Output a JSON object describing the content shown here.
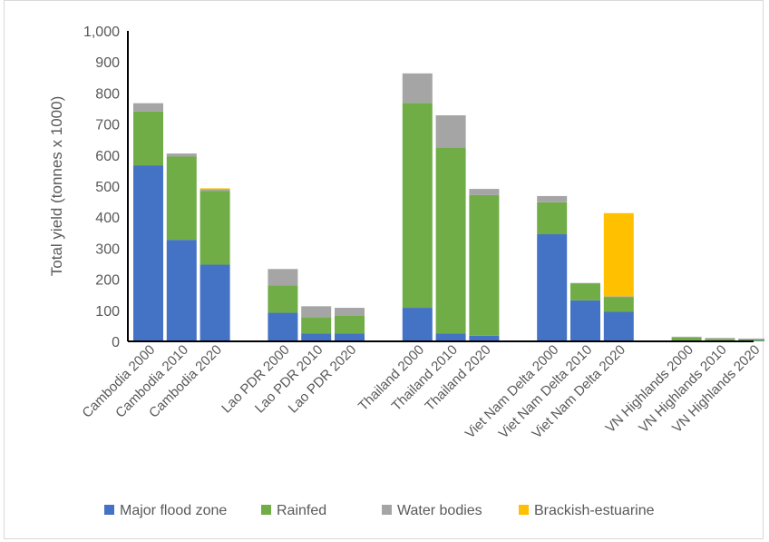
{
  "chart_data": {
    "type": "bar",
    "stacked": true,
    "title": "",
    "xlabel": "",
    "ylabel": "Total yield (tonnes x 1000)",
    "ylim": [
      0,
      1000
    ],
    "yticks": [
      0,
      100,
      200,
      300,
      400,
      500,
      600,
      700,
      800,
      900,
      1000
    ],
    "ytick_labels": [
      "0",
      "100",
      "200",
      "300",
      "400",
      "500",
      "600",
      "700",
      "800",
      "900",
      "1,000"
    ],
    "grid": false,
    "legend_position": "bottom",
    "groups": [
      [
        "Cambodia 2000",
        "Cambodia 2010",
        "Cambodia 2020"
      ],
      [
        "Lao PDR 2000",
        "Lao PDR 2010",
        "Lao PDR 2020"
      ],
      [
        "Thailand 2000",
        "Thailand 2010",
        "Thailand 2020"
      ],
      [
        "Viet Nam Delta 2000",
        "Viet Nam Delta 2010",
        "Viet Nam Delta 2020"
      ],
      [
        "VN Highlands 2000",
        "VN Highlands 2010",
        "VN Highlands 2020"
      ]
    ],
    "categories": [
      "Cambodia 2000",
      "Cambodia 2010",
      "Cambodia 2020",
      "Lao PDR 2000",
      "Lao PDR 2010",
      "Lao PDR 2020",
      "Thailand 2000",
      "Thailand 2010",
      "Thailand 2020",
      "Viet Nam Delta 2000",
      "Viet Nam Delta 2010",
      "Viet Nam Delta 2020",
      "VN Highlands 2000",
      "VN Highlands 2010",
      "VN Highlands 2020"
    ],
    "series": [
      {
        "name": "Major flood zone",
        "color": "#4472c4",
        "values": [
          567,
          327,
          247,
          92,
          25,
          25,
          108,
          25,
          18,
          345,
          132,
          95,
          2,
          2,
          2
        ]
      },
      {
        "name": "Rainfed",
        "color": "#70ad47",
        "values": [
          173,
          268,
          238,
          88,
          53,
          58,
          660,
          600,
          453,
          103,
          55,
          48,
          10,
          6,
          4
        ]
      },
      {
        "name": "Water bodies",
        "color": "#a5a5a5",
        "values": [
          27,
          10,
          5,
          53,
          35,
          25,
          95,
          103,
          20,
          20,
          1,
          2,
          3,
          3,
          3
        ]
      },
      {
        "name": "Brackish-estuarine",
        "color": "#ffc000",
        "values": [
          0,
          0,
          3,
          0,
          0,
          0,
          0,
          0,
          0,
          0,
          0,
          268,
          0,
          0,
          0
        ]
      }
    ]
  }
}
